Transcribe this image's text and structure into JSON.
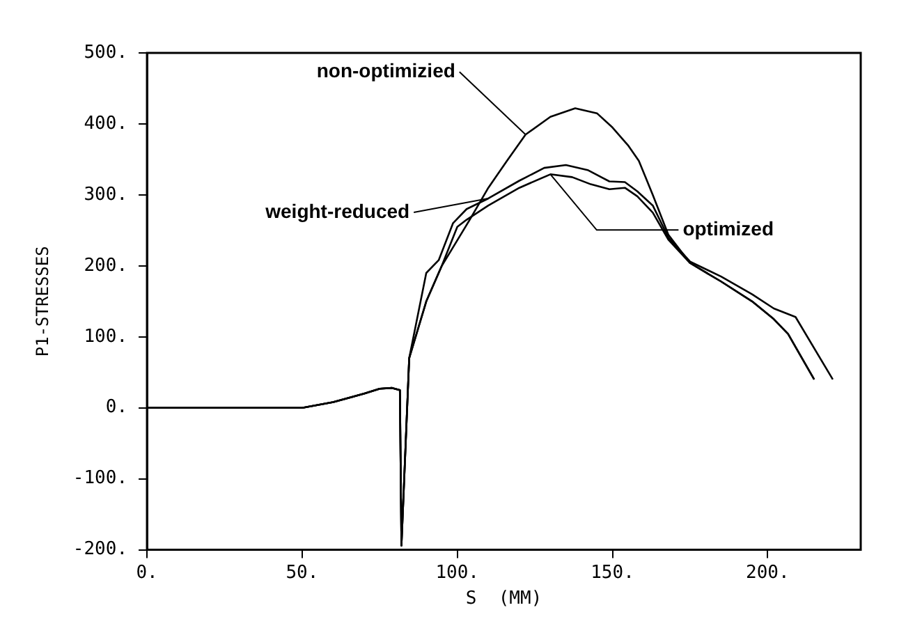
{
  "chart_data": {
    "type": "line",
    "xlabel": "S  (MM)",
    "ylabel": "P1-STRESSES",
    "xlim": [
      0,
      230
    ],
    "ylim": [
      -200,
      500
    ],
    "xticks": [
      {
        "value": 0,
        "label": "0."
      },
      {
        "value": 50,
        "label": "50."
      },
      {
        "value": 100,
        "label": "100."
      },
      {
        "value": 150,
        "label": "150."
      },
      {
        "value": 200,
        "label": "200."
      }
    ],
    "yticks": [
      {
        "value": -200,
        "label": "-200."
      },
      {
        "value": -100,
        "label": "-100."
      },
      {
        "value": 0,
        "label": "0."
      },
      {
        "value": 100,
        "label": "100."
      },
      {
        "value": 200,
        "label": "200."
      },
      {
        "value": 300,
        "label": "300."
      },
      {
        "value": 400,
        "label": "400."
      },
      {
        "value": 500,
        "label": "500."
      }
    ],
    "grid": false,
    "marker": "none",
    "line_style": "solid",
    "series": [
      {
        "name": "non-optimizied",
        "color": "#000000",
        "x": [
          0,
          50,
          60,
          70,
          75,
          79,
          81.5,
          82,
          84.5,
          90,
          95,
          104,
          110,
          116,
          122,
          130,
          138,
          145,
          150,
          155,
          158.5,
          163,
          168,
          175,
          185,
          195,
          202,
          206.6,
          215
        ],
        "values": [
          0,
          0,
          8,
          20,
          27,
          28,
          25,
          -194,
          70,
          150,
          200,
          265,
          310,
          348,
          385,
          410,
          422,
          415,
          395,
          370,
          348,
          300,
          244,
          204,
          178,
          150,
          125,
          104,
          40
        ]
      },
      {
        "name": "weight-reduced",
        "color": "#000000",
        "x": [
          0,
          50,
          60,
          70,
          75,
          79,
          81.5,
          82,
          84.5,
          90,
          94,
          98.6,
          103,
          110,
          120,
          128,
          135,
          142,
          149,
          154,
          158,
          163,
          168,
          175,
          185,
          195,
          202,
          209,
          221
        ],
        "values": [
          0,
          0,
          8,
          20,
          27,
          28,
          25,
          -194,
          70,
          190,
          208,
          260,
          280,
          295,
          320,
          338,
          342,
          335,
          319,
          318,
          305,
          285,
          240,
          206,
          185,
          160,
          140,
          128,
          40
        ]
      },
      {
        "name": "optimized",
        "color": "#000000",
        "x": [
          0,
          50,
          60,
          70,
          75,
          79,
          81.5,
          82,
          84.5,
          90,
          95,
          100,
          103,
          110,
          120,
          130,
          137,
          143,
          149,
          154,
          158,
          163,
          168,
          175,
          185,
          195,
          202,
          206.6,
          215
        ],
        "values": [
          0,
          0,
          8,
          20,
          27,
          28,
          25,
          -194,
          70,
          150,
          200,
          255,
          265,
          285,
          310,
          329,
          325,
          315,
          308,
          310,
          298,
          275,
          237,
          204,
          178,
          150,
          125,
          104,
          40
        ]
      }
    ]
  }
}
